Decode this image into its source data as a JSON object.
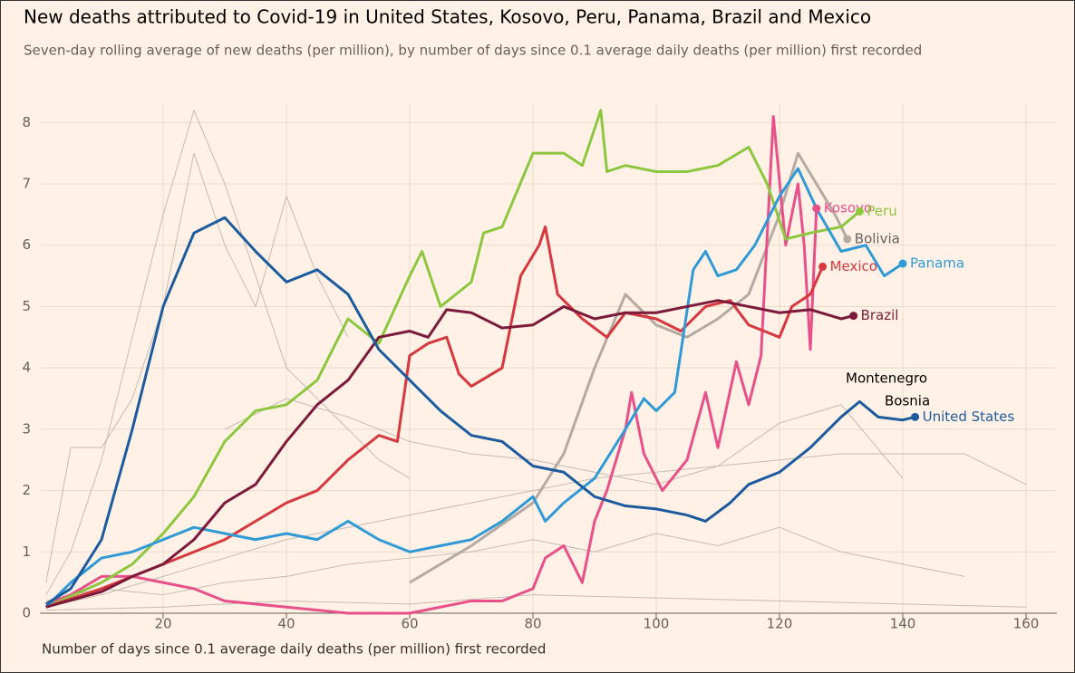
{
  "chart_data": {
    "type": "line",
    "title": "New deaths attributed to Covid-19 in United States, Kosovo, Peru, Panama, Brazil and Mexico",
    "subtitle": "Seven-day rolling average of new deaths (per million), by number of days since 0.1 average daily deaths (per million) first recorded",
    "x_label": "Number of days since 0.1 average daily deaths (per million) first recorded",
    "xlim": [
      0,
      165
    ],
    "xticks": [
      20,
      40,
      60,
      80,
      100,
      120,
      140,
      160
    ],
    "ylim": [
      0,
      8.3
    ],
    "yticks": [
      0,
      1,
      2,
      3,
      4,
      5,
      6,
      7,
      8
    ],
    "grid": true,
    "annotations": [
      "Montenegro",
      "Bosnia"
    ],
    "background_series": [
      {
        "color": "#c4bbb2",
        "x": [
          1,
          5,
          10,
          15,
          20,
          25,
          30,
          35,
          40,
          45,
          50,
          55,
          60
        ],
        "values": [
          0.3,
          1.0,
          2.5,
          4.5,
          6.5,
          8.2,
          7.0,
          5.5,
          4.0,
          3.5,
          3.0,
          2.5,
          2.2
        ]
      },
      {
        "color": "#c4bbb2",
        "x": [
          1,
          10,
          20,
          30,
          40,
          50,
          60,
          70,
          80,
          90,
          100,
          110,
          120,
          130,
          140,
          150,
          160
        ],
        "values": [
          0.1,
          0.3,
          0.6,
          0.9,
          1.2,
          1.4,
          1.6,
          1.8,
          2.0,
          2.2,
          2.3,
          2.4,
          2.5,
          2.6,
          2.6,
          2.6,
          2.1
        ]
      },
      {
        "color": "#c4bbb2",
        "x": [
          1,
          10,
          20,
          30,
          40,
          50,
          60,
          70,
          80,
          90,
          100,
          110,
          120,
          130,
          140,
          150
        ],
        "values": [
          0.2,
          0.4,
          0.3,
          0.5,
          0.6,
          0.8,
          0.9,
          1.0,
          1.2,
          1.0,
          1.3,
          1.1,
          1.4,
          1.0,
          0.8,
          0.6
        ]
      },
      {
        "color": "#c4bbb2",
        "x": [
          1,
          5,
          10,
          15,
          20,
          25,
          30,
          35,
          40,
          45,
          50
        ],
        "values": [
          0.5,
          2.7,
          2.7,
          3.5,
          5.0,
          7.5,
          6.0,
          5.0,
          6.8,
          5.5,
          4.5
        ]
      },
      {
        "color": "#c4bbb2",
        "x": [
          30,
          40,
          50,
          60,
          70,
          80,
          90,
          100,
          110,
          120,
          130,
          140
        ],
        "values": [
          3.0,
          3.5,
          3.2,
          2.8,
          2.6,
          2.5,
          2.3,
          2.1,
          2.4,
          3.1,
          3.4,
          2.2
        ]
      },
      {
        "color": "#c4bbb2",
        "x": [
          1,
          20,
          40,
          60,
          80,
          100,
          120,
          140,
          160
        ],
        "values": [
          0.05,
          0.1,
          0.2,
          0.15,
          0.3,
          0.25,
          0.2,
          0.15,
          0.1
        ]
      }
    ],
    "series": [
      {
        "name": "Bolivia",
        "color": "#b3aaa3",
        "label_color": "#66605c",
        "x": [
          60,
          70,
          80,
          85,
          90,
          95,
          100,
          105,
          110,
          115,
          120,
          123,
          126,
          129,
          131
        ],
        "values": [
          0.5,
          1.1,
          1.8,
          2.6,
          4.0,
          5.2,
          4.7,
          4.5,
          4.8,
          5.2,
          6.5,
          7.5,
          7.0,
          6.5,
          6.1
        ]
      },
      {
        "name": "Kosovo",
        "color": "#e8508a",
        "x": [
          1,
          5,
          10,
          15,
          20,
          25,
          30,
          40,
          50,
          60,
          65,
          70,
          75,
          80,
          82,
          85,
          88,
          90,
          92,
          95,
          96,
          98,
          101,
          105,
          108,
          110,
          113,
          115,
          117,
          119,
          121,
          123,
          124,
          125,
          126
        ],
        "values": [
          0.15,
          0.3,
          0.6,
          0.6,
          0.5,
          0.4,
          0.2,
          0.1,
          0.0,
          0.0,
          0.1,
          0.2,
          0.2,
          0.4,
          0.9,
          1.1,
          0.5,
          1.5,
          2.0,
          3.0,
          3.6,
          2.6,
          2.0,
          2.5,
          3.6,
          2.7,
          4.1,
          3.4,
          4.2,
          8.1,
          6.0,
          7.0,
          6.0,
          4.3,
          6.6
        ]
      },
      {
        "name": "Peru",
        "color": "#8dc63f",
        "x": [
          1,
          10,
          15,
          20,
          25,
          30,
          35,
          40,
          45,
          50,
          55,
          60,
          62,
          65,
          70,
          72,
          75,
          80,
          85,
          88,
          91,
          92,
          95,
          100,
          105,
          110,
          115,
          118,
          121,
          125,
          130,
          133
        ],
        "values": [
          0.1,
          0.5,
          0.8,
          1.3,
          1.9,
          2.8,
          3.3,
          3.4,
          3.8,
          4.8,
          4.4,
          5.5,
          5.9,
          5.0,
          5.4,
          6.2,
          6.3,
          7.5,
          7.5,
          7.3,
          8.2,
          7.2,
          7.3,
          7.2,
          7.2,
          7.3,
          7.6,
          7.0,
          6.1,
          6.2,
          6.3,
          6.55
        ]
      },
      {
        "name": "Mexico",
        "color": "#d7373f",
        "x": [
          1,
          10,
          20,
          30,
          40,
          45,
          50,
          55,
          58,
          60,
          63,
          66,
          68,
          70,
          75,
          78,
          81,
          82,
          84,
          88,
          92,
          95,
          100,
          104,
          108,
          112,
          115,
          120,
          122,
          125,
          127
        ],
        "values": [
          0.1,
          0.4,
          0.8,
          1.2,
          1.8,
          2.0,
          2.5,
          2.9,
          2.8,
          4.2,
          4.4,
          4.5,
          3.9,
          3.7,
          4.0,
          5.5,
          6.0,
          6.3,
          5.2,
          4.8,
          4.5,
          4.9,
          4.8,
          4.6,
          5.0,
          5.1,
          4.7,
          4.5,
          5.0,
          5.2,
          5.65
        ]
      },
      {
        "name": "Panama",
        "color": "#2f9ad6",
        "x": [
          1,
          5,
          10,
          15,
          20,
          25,
          30,
          35,
          40,
          45,
          50,
          55,
          60,
          65,
          70,
          75,
          80,
          82,
          85,
          90,
          95,
          98,
          100,
          103,
          106,
          108,
          110,
          113,
          116,
          120,
          123,
          126,
          130,
          134,
          137,
          140
        ],
        "values": [
          0.1,
          0.5,
          0.9,
          1.0,
          1.2,
          1.4,
          1.3,
          1.2,
          1.3,
          1.2,
          1.5,
          1.2,
          1.0,
          1.1,
          1.2,
          1.5,
          1.9,
          1.5,
          1.8,
          2.2,
          3.0,
          3.5,
          3.3,
          3.6,
          5.6,
          5.9,
          5.5,
          5.6,
          6.0,
          6.8,
          7.25,
          6.6,
          5.9,
          6.0,
          5.5,
          5.7
        ]
      },
      {
        "name": "Brazil",
        "color": "#7b1a3a",
        "x": [
          1,
          10,
          15,
          20,
          25,
          30,
          35,
          40,
          45,
          50,
          55,
          60,
          63,
          66,
          70,
          75,
          80,
          85,
          90,
          95,
          100,
          105,
          110,
          115,
          120,
          125,
          130,
          132
        ],
        "values": [
          0.1,
          0.35,
          0.6,
          0.8,
          1.2,
          1.8,
          2.1,
          2.8,
          3.4,
          3.8,
          4.5,
          4.6,
          4.5,
          4.95,
          4.9,
          4.65,
          4.7,
          5.0,
          4.8,
          4.9,
          4.9,
          5.0,
          5.1,
          5.0,
          4.9,
          4.95,
          4.8,
          4.85
        ]
      },
      {
        "name": "United States",
        "color": "#1c5b9e",
        "x": [
          1,
          5,
          10,
          15,
          20,
          25,
          30,
          35,
          40,
          45,
          50,
          55,
          60,
          65,
          70,
          75,
          80,
          85,
          90,
          95,
          100,
          105,
          108,
          112,
          115,
          120,
          125,
          130,
          133,
          136,
          140,
          142
        ],
        "values": [
          0.15,
          0.4,
          1.2,
          3.0,
          5.0,
          6.2,
          6.45,
          5.9,
          5.4,
          5.6,
          5.2,
          4.3,
          3.8,
          3.3,
          2.9,
          2.8,
          2.4,
          2.3,
          1.9,
          1.75,
          1.7,
          1.6,
          1.5,
          1.8,
          2.1,
          2.3,
          2.7,
          3.2,
          3.45,
          3.2,
          3.15,
          3.2
        ]
      }
    ]
  }
}
